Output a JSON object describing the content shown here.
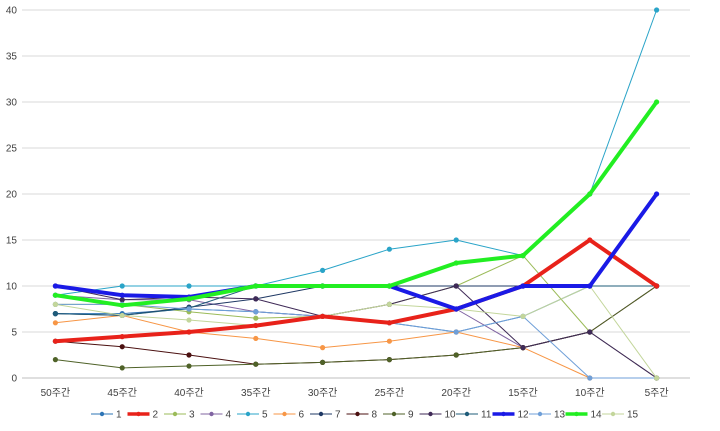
{
  "chart_data": {
    "type": "line",
    "title": "",
    "xlabel": "",
    "ylabel": "",
    "ylim": [
      0,
      40
    ],
    "yticks": [
      0,
      5,
      10,
      15,
      20,
      25,
      30,
      35,
      40
    ],
    "grid": "horizontal",
    "legend_position": "bottom",
    "categories": [
      "50주간",
      "45주간",
      "40주간",
      "35주간",
      "30주간",
      "25주간",
      "20주간",
      "15주간",
      "10주간",
      "5주간"
    ],
    "series": [
      {
        "name": "1",
        "color": "#2e75b6",
        "width": 1,
        "values": [
          7,
          7,
          7.5,
          7.2,
          6.7,
          6.0,
          5.0,
          6.7,
          10,
          10
        ]
      },
      {
        "name": "2",
        "color": "#e8221a",
        "width": 4,
        "values": [
          4,
          4.5,
          5,
          5.7,
          6.7,
          6.0,
          7.5,
          10,
          15,
          10
        ]
      },
      {
        "name": "3",
        "color": "#9bbb59",
        "width": 1,
        "values": [
          8,
          8,
          7.2,
          6.5,
          6.7,
          8.0,
          10,
          13.3,
          5,
          0
        ]
      },
      {
        "name": "4",
        "color": "#8064a2",
        "width": 1,
        "values": [
          9,
          8.5,
          8.5,
          7.2,
          6.7,
          6.0,
          7.5,
          3.3,
          5,
          0
        ]
      },
      {
        "name": "5",
        "color": "#2aa4c8",
        "width": 1,
        "values": [
          9,
          10,
          10,
          10,
          11.7,
          14.0,
          15,
          13.3,
          20,
          40
        ]
      },
      {
        "name": "6",
        "color": "#f79646",
        "width": 1,
        "values": [
          6,
          6.8,
          5,
          4.3,
          3.3,
          4.0,
          5,
          3.3,
          0,
          0
        ]
      },
      {
        "name": "7",
        "color": "#1f3864",
        "width": 1,
        "values": [
          7,
          6.8,
          7.7,
          8.6,
          10,
          10,
          10,
          10,
          10,
          10
        ]
      },
      {
        "name": "8",
        "color": "#4b1010",
        "width": 1,
        "values": [
          4,
          3.4,
          2.5,
          1.5,
          1.7,
          2.0,
          2.5,
          3.3,
          5,
          10
        ]
      },
      {
        "name": "9",
        "color": "#4f6228",
        "width": 1,
        "values": [
          2,
          1.1,
          1.3,
          1.5,
          1.7,
          2.0,
          2.5,
          3.3,
          5,
          10
        ]
      },
      {
        "name": "10",
        "color": "#3f2a57",
        "width": 1,
        "values": [
          10,
          8.5,
          8.8,
          8.6,
          6.7,
          8.0,
          10,
          3.3,
          5,
          0
        ]
      },
      {
        "name": "11",
        "color": "#1f5c7a",
        "width": 1,
        "values": [
          7,
          6.8,
          7.6,
          10,
          10,
          10,
          7.5,
          10,
          10,
          10
        ]
      },
      {
        "name": "12",
        "color": "#1a1ae6",
        "width": 4,
        "values": [
          10,
          9,
          8.8,
          10,
          10,
          10,
          7.5,
          10,
          10,
          20
        ]
      },
      {
        "name": "13",
        "color": "#6f9fd8",
        "width": 1,
        "values": [
          8,
          8,
          7.5,
          7.2,
          6.7,
          6.0,
          5.0,
          6.7,
          0,
          0
        ]
      },
      {
        "name": "14",
        "color": "#22ee22",
        "width": 4,
        "values": [
          9,
          7.9,
          8.6,
          10,
          10,
          10,
          12.5,
          13.3,
          20,
          30
        ]
      },
      {
        "name": "15",
        "color": "#c3d69b",
        "width": 1,
        "values": [
          8,
          6.8,
          6.3,
          5.7,
          6.7,
          8.0,
          7.5,
          6.7,
          10,
          0
        ]
      }
    ]
  }
}
